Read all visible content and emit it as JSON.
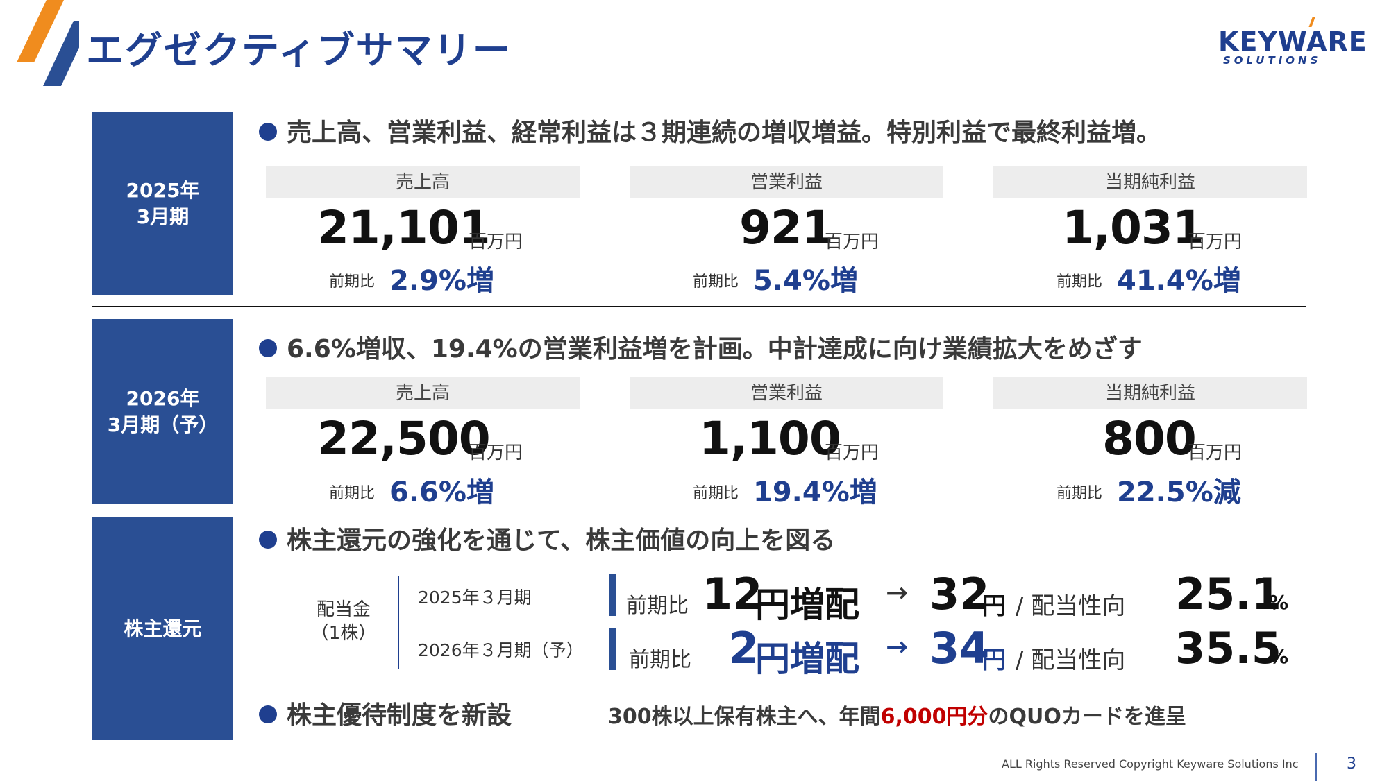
{
  "title": "エグゼクティブサマリー",
  "logo": {
    "main": "KEYWARE",
    "sub": "SOLUTIONS"
  },
  "section1": {
    "label": "2025年\n3月期",
    "bullet": "売上高、営業利益、経常利益は３期連続の増収増益。特別利益で最終利益増。",
    "metrics": [
      {
        "head": "売上高",
        "value": "21,101",
        "unit": "百万円",
        "comp": "前期比",
        "pct": "2.9%増"
      },
      {
        "head": "営業利益",
        "value": "921",
        "unit": "百万円",
        "comp": "前期比",
        "pct": "5.4%増"
      },
      {
        "head": "当期純利益",
        "value": "1,031",
        "unit": "百万円",
        "comp": "前期比",
        "pct": "41.4%増"
      }
    ]
  },
  "section2": {
    "label": "2026年\n3月期（予）",
    "bullet": "6.6%増収、19.4%の営業利益増を計画。中計達成に向け業績拡大をめざす",
    "metrics": [
      {
        "head": "売上高",
        "value": "22,500",
        "unit": "百万円",
        "comp": "前期比",
        "pct": "6.6%増"
      },
      {
        "head": "営業利益",
        "value": "1,100",
        "unit": "百万円",
        "comp": "前期比",
        "pct": "19.4%増"
      },
      {
        "head": "当期純利益",
        "value": "800",
        "unit": "百万円",
        "comp": "前期比",
        "pct": "22.5%減"
      }
    ]
  },
  "section3": {
    "label": "株主還元",
    "bullet": "株主還元の強化を通じて、株主価値の向上を図る",
    "dividend_label": "配当金\n（1株）",
    "rows": [
      {
        "period": "2025年３月期",
        "comp": "前期比",
        "inc_num": "12",
        "inc_unit": "円増配",
        "arrow": "→",
        "div_num": "32",
        "div_unit": "円",
        "payout_label": "/ 配当性向",
        "payout_num": "25.1",
        "payout_unit": "%"
      },
      {
        "period": "2026年３月期（予）",
        "comp": "前期比",
        "inc_num": "2",
        "inc_unit": "円増配",
        "arrow": "→",
        "div_num": "34",
        "div_unit": "円",
        "payout_label": "/ 配当性向",
        "payout_num": "35.5",
        "payout_unit": "%"
      }
    ],
    "bullet2": "株主優待制度を新設",
    "benefit_pre": "300株以上保有株主へ、年間",
    "benefit_highlight": "6,000円分",
    "benefit_post": "のQUOカードを進呈"
  },
  "footer": {
    "copyright": "ALL Rights Reserved Copyright Keyware Solutions Inc",
    "page": "3"
  },
  "colors": {
    "navy": "#1F3F8F",
    "box": "#2A4F94",
    "orange": "#F08C1E",
    "highlight_red": "#C00000"
  }
}
